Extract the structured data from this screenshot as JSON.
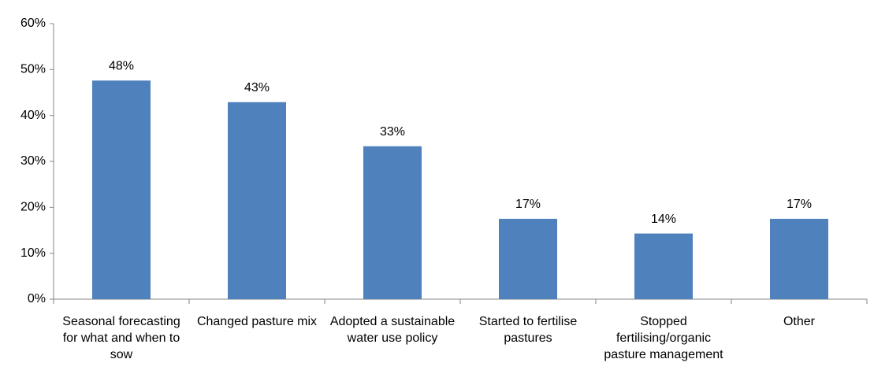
{
  "chart_data": {
    "type": "bar",
    "categories": [
      "Seasonal forecasting for what and when to sow",
      "Changed pasture mix",
      "Adopted a sustainable water use policy",
      "Started to fertilise pastures",
      "Stopped fertilising/organic pasture management",
      "Other"
    ],
    "values": [
      47.6,
      42.9,
      33.3,
      17.5,
      14.3,
      17.5
    ],
    "value_labels": [
      "48%",
      "43%",
      "33%",
      "17%",
      "14%",
      "17%"
    ],
    "color": "#4f81bd",
    "ylim": [
      0,
      60
    ],
    "yticks": [
      {
        "value": 0,
        "label": "0%"
      },
      {
        "value": 10,
        "label": "10%"
      },
      {
        "value": 20,
        "label": "20%"
      },
      {
        "value": 30,
        "label": "30%"
      },
      {
        "value": 40,
        "label": "40%"
      },
      {
        "value": 50,
        "label": "50%"
      },
      {
        "value": 60,
        "label": "60%"
      }
    ],
    "grid": false
  }
}
